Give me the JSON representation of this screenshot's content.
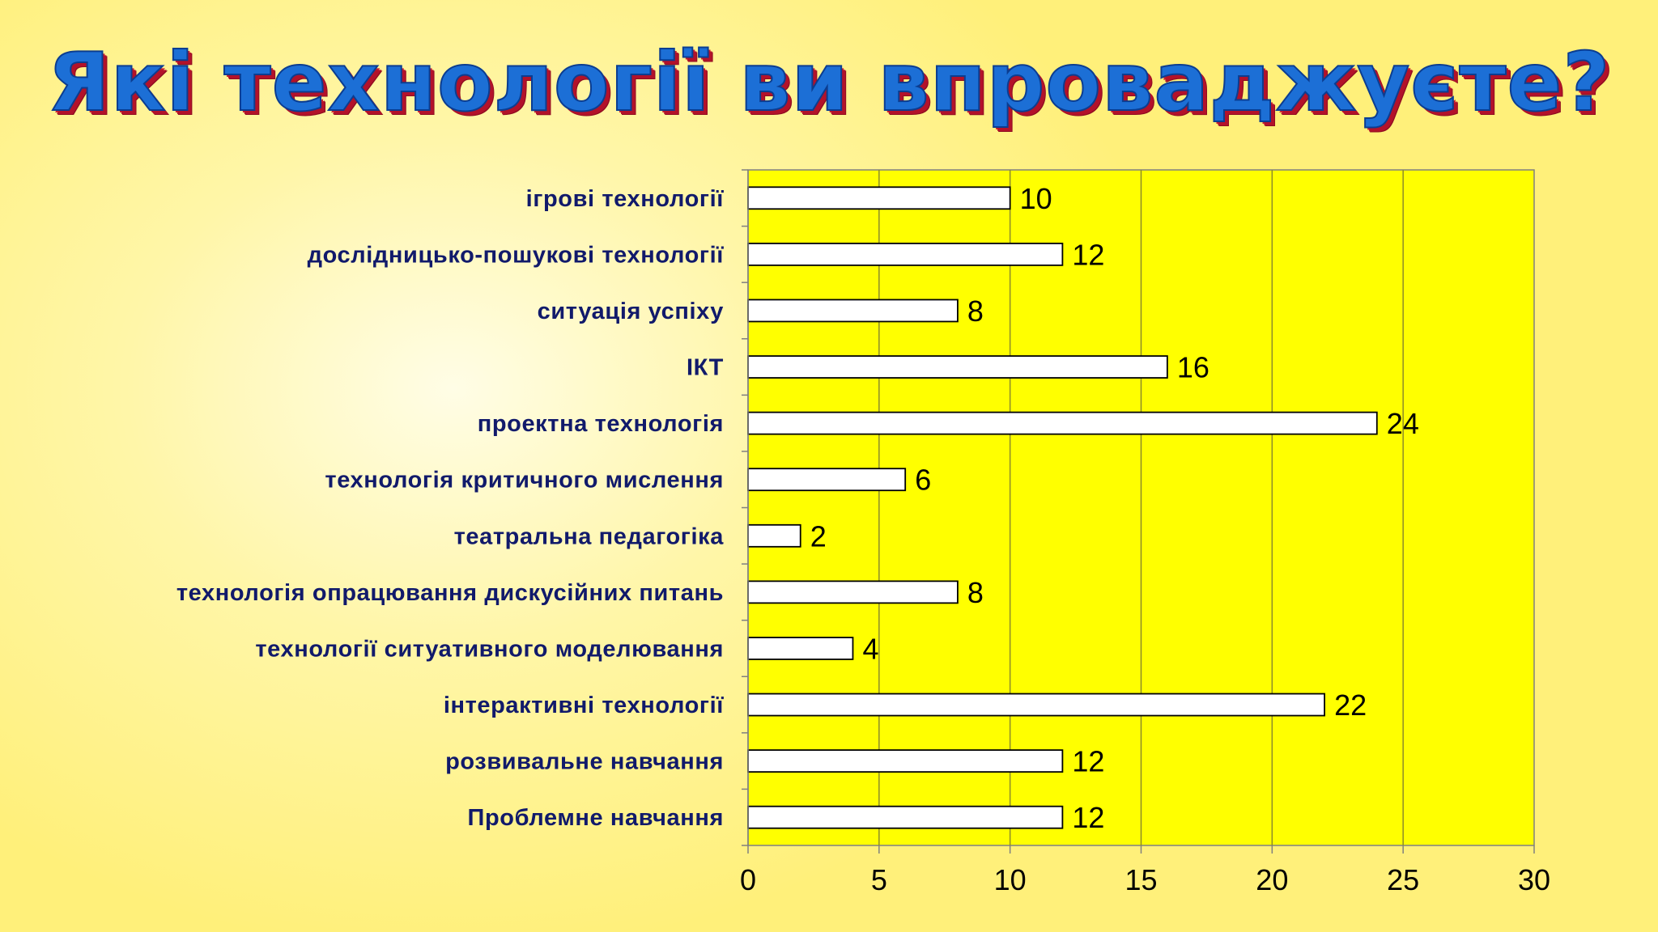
{
  "slide": {
    "title": "Які технології ви впроваджуєте?"
  },
  "colors": {
    "plot_background": "#ffff00",
    "bar_fill": "#ffffff",
    "bar_stroke": "#000000",
    "label_color": "#111a6b",
    "title_fill": "#1c6fd6",
    "title_shadow": "#b3122a"
  },
  "chart_data": {
    "type": "bar",
    "orientation": "horizontal",
    "categories": [
      "ігрові технології",
      "дослідницько-пошукові технології",
      "ситуація успіху",
      "ІКТ",
      "проектна технологія",
      "технологія критичного мислення",
      "театральна педагогіка",
      "технологія опрацювання дискусійних питань",
      "технології ситуативного моделювання",
      "інтерактивні технології",
      "розвивальне навчання",
      "Проблемне навчання"
    ],
    "values": [
      10,
      12,
      8,
      16,
      24,
      6,
      2,
      8,
      4,
      22,
      12,
      12
    ],
    "xlim": [
      0,
      30
    ],
    "xticks": [
      "0",
      "5",
      "10",
      "15",
      "20",
      "25",
      "30"
    ],
    "grid": true,
    "legend": "none"
  }
}
